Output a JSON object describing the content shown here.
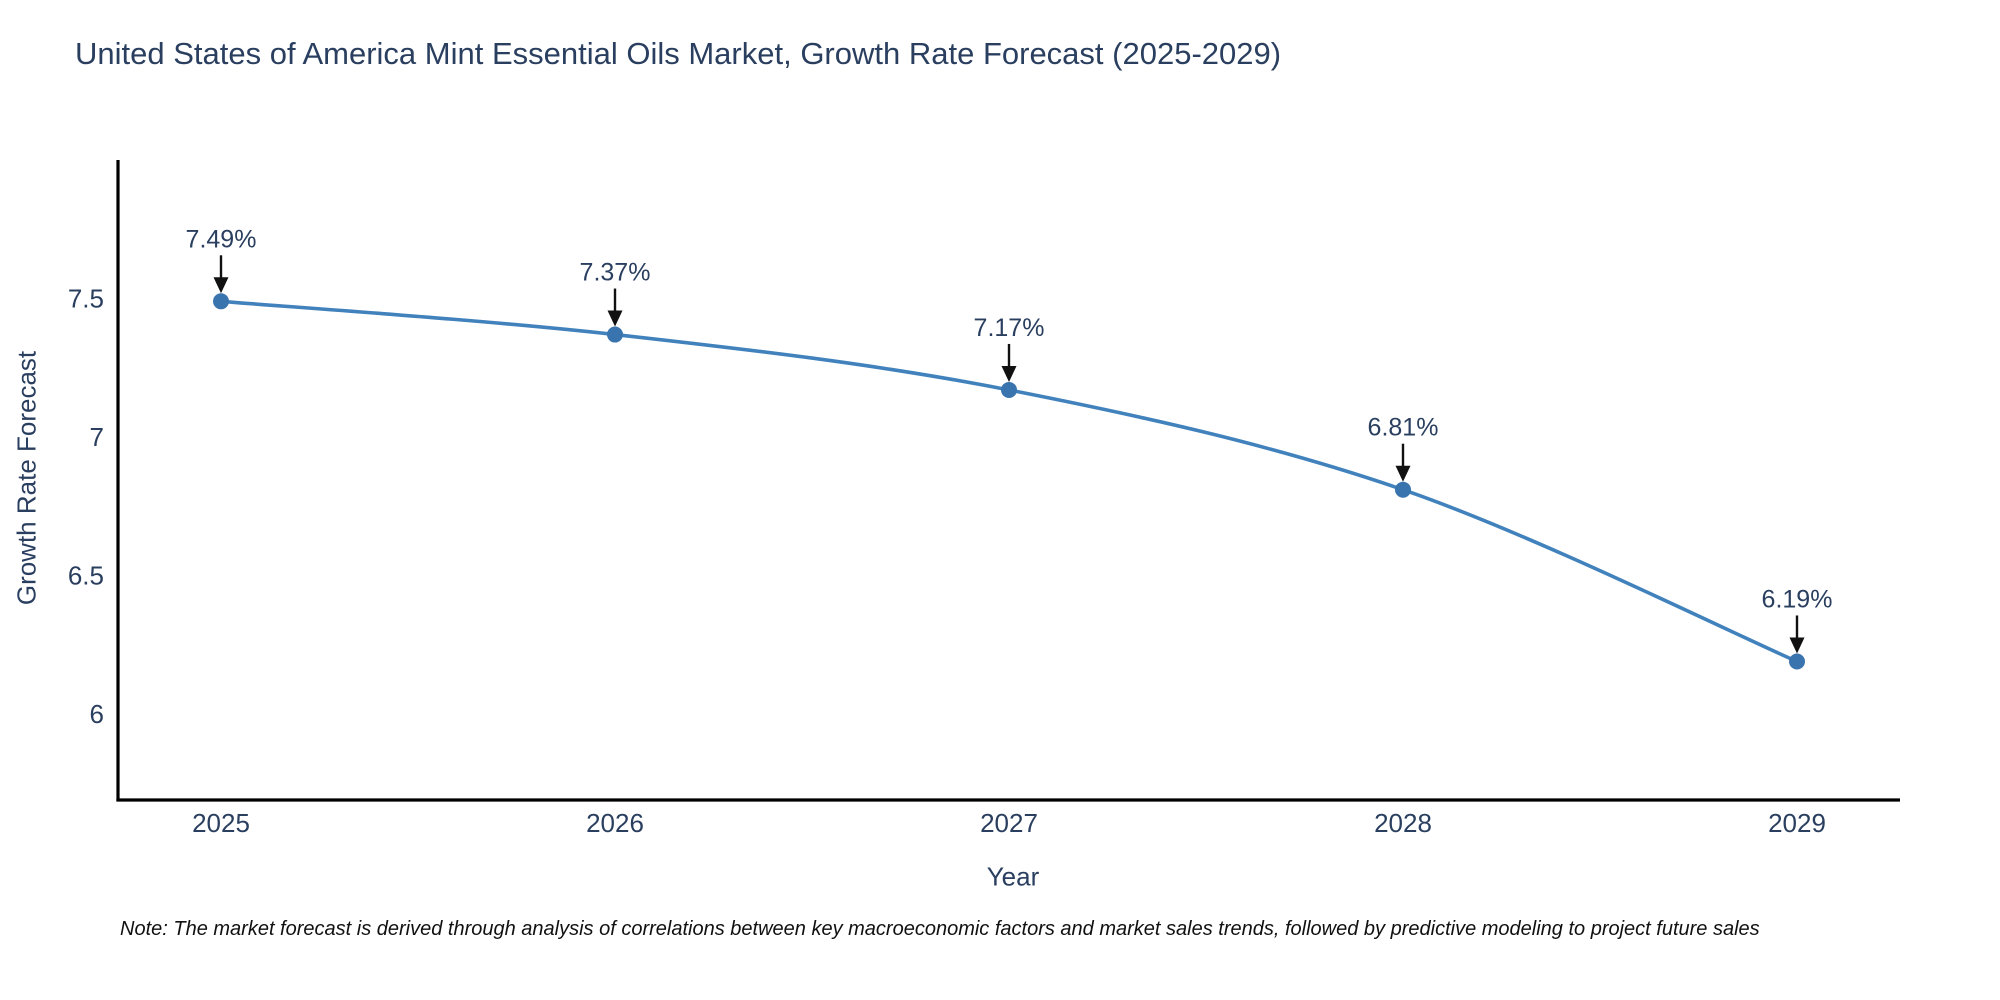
{
  "chart_data": {
    "type": "line",
    "title": "United States of America Mint Essential Oils Market, Growth Rate Forecast (2025-2029)",
    "xlabel": "Year",
    "ylabel": "Growth Rate Forecast",
    "x": [
      2025,
      2026,
      2027,
      2028,
      2029
    ],
    "values": [
      7.49,
      7.37,
      7.17,
      6.81,
      6.19
    ],
    "point_labels": [
      "7.49%",
      "7.37%",
      "7.17%",
      "6.81%",
      "6.19%"
    ],
    "yticks": [
      6,
      6.5,
      7,
      7.5
    ],
    "ylim": [
      5.69,
      8.0
    ],
    "grid": false,
    "legend": "none",
    "line_color": "#4182bd",
    "marker_color": "#3a74ae",
    "arrow_color": "#111111",
    "text_color": "#2a3f5f",
    "axis_color": "#000000",
    "note": "Note: The market forecast is derived through analysis of correlations between key macroeconomic factors and market sales trends, followed by predictive modeling to project future sales"
  }
}
